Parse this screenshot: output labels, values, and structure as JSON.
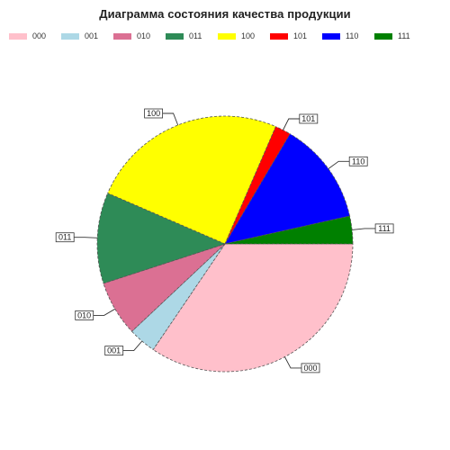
{
  "chart_data": {
    "type": "pie",
    "title": "Диаграмма состояния качества продукции",
    "legend_position": "top",
    "slices": [
      {
        "label": "000",
        "value": 34.5,
        "color": "#ffc0cb"
      },
      {
        "label": "001",
        "value": 3.5,
        "color": "#add8e6"
      },
      {
        "label": "010",
        "value": 7.0,
        "color": "#db7093"
      },
      {
        "label": "011",
        "value": 11.5,
        "color": "#2e8b57"
      },
      {
        "label": "100",
        "value": 25.0,
        "color": "#ffff00"
      },
      {
        "label": "101",
        "value": 2.0,
        "color": "#ff0000"
      },
      {
        "label": "110",
        "value": 13.0,
        "color": "#0000ff"
      },
      {
        "label": "111",
        "value": 3.5,
        "color": "#008000"
      }
    ]
  }
}
